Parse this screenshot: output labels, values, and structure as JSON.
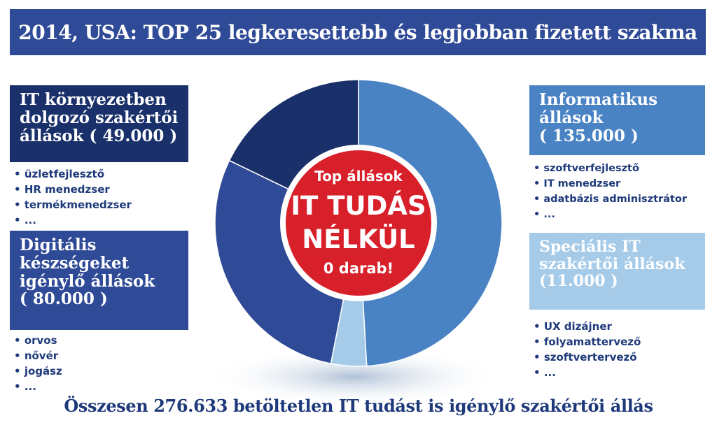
{
  "title": "2014, USA: TOP 25 legkeresettebb és legjobban fizetett szakma",
  "left_top": {
    "label_lines": [
      "IT környezetben",
      "dolgozó szakértői",
      "állások ( 49.000 )"
    ],
    "color": "#1a306a",
    "items": [
      "üzletfejlesztő",
      "HR menedzser",
      "termékmenedzser",
      "..."
    ]
  },
  "left_bottom": {
    "label_lines": [
      "Digitális",
      "készségeket",
      "igénylő állások",
      "( 80.000 )"
    ],
    "color": "#2f4a96",
    "items": [
      "orvos",
      "nővér",
      "jogász",
      "..."
    ]
  },
  "right_top": {
    "label_lines": [
      "Informatikus",
      "állások",
      "( 135.000 )"
    ],
    "color": "#4a83c4",
    "items": [
      "szoftverfejlesztő",
      "IT menedzser",
      "adatbázis adminisztrátor",
      "..."
    ]
  },
  "right_bottom": {
    "label_lines": [
      "Speciális IT",
      "szakértői állások",
      "(11.000 )"
    ],
    "color": "#a6cbe9",
    "items": [
      "UX dizájner",
      "folyamattervező",
      "szoftvertervező",
      "..."
    ]
  },
  "center": {
    "lines": [
      "Top állások",
      "IT TUDÁS",
      "NÉLKÜL",
      "0 darab!"
    ],
    "color": "#d8202a"
  },
  "footer": "Összesen 276.633 betöltetlen IT tudást is igénylő szakértői állás",
  "chart_data": {
    "type": "pie",
    "title": "2014, USA: TOP 25 legkeresettebb és legjobban fizetett szakma",
    "categories": [
      "Informatikus állások",
      "Speciális IT szakértői állások",
      "Digitális készségeket igénylő állások",
      "IT környezetben dolgozó szakértői állások"
    ],
    "values": [
      135000,
      11000,
      80000,
      49000
    ],
    "colors": [
      "#4a83c4",
      "#a6cbe9",
      "#2f4a96",
      "#1a306a"
    ],
    "donut": true,
    "total_label": "Összesen 276.633"
  }
}
